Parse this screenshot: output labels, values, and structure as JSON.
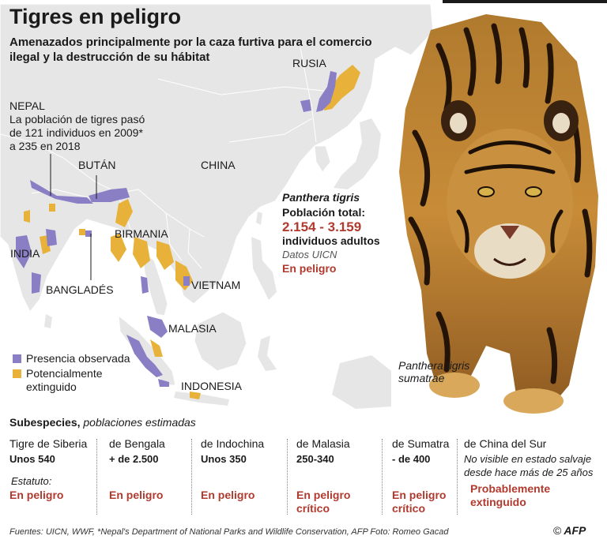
{
  "header": {
    "title": "Tigres en peligro",
    "subtitle": "Amenazados principalmente por la caza furtiva para el comercio ilegal y la destrucción de su hábitat"
  },
  "map": {
    "labels": {
      "russia": "RUSIA",
      "china": "CHINA",
      "bhutan": "BUTÁN",
      "burma": "BIRMANIA",
      "india": "INDIA",
      "bangladesh": "BANGLADÉS",
      "vietnam": "VIETNAM",
      "malaysia": "MALASIA",
      "indonesia": "INDONESIA"
    },
    "nepal_note": {
      "label": "NEPAL",
      "text": "La población de tigres pasó de 121 individuos en 2009* a 235 en 2018"
    },
    "colors": {
      "land": "#e6e6e6",
      "sea": "#ffffff",
      "border": "#ffffff",
      "observed": "#8a7fc4",
      "extinct": "#e8b23a"
    }
  },
  "legend": {
    "observed": "Presencia observada",
    "extinct": "Potencialmente extinguido"
  },
  "species": {
    "name": "Panthera tigris",
    "population_label": "Población total:",
    "population": "2.154 - 3.159",
    "individuals": "individuos adultos",
    "source": "Datos UICN",
    "status": "En peligro"
  },
  "tiger_caption": "Panthera tigris sumatrae",
  "subspecies": {
    "heading_bold": "Subespecies,",
    "heading_italic": "poblaciones estimadas",
    "status_label": "Estatuto:",
    "items": [
      {
        "name": "Tigre de Siberia",
        "count": "Unos 540",
        "status": "En peligro"
      },
      {
        "name": "de Bengala",
        "count": "+ de 2.500",
        "status": "En peligro"
      },
      {
        "name": "de Indochina",
        "count": "Unos 350",
        "status": "En peligro"
      },
      {
        "name": "de Malasia",
        "count": "250-340",
        "status": "En peligro crítico"
      },
      {
        "name": "de Sumatra",
        "count": "- de 400",
        "status": "En peligro crítico"
      },
      {
        "name": "de China del Sur",
        "note": "No visible en estado salvaje desde hace más de 25 años",
        "status": "Probablemente extinguido"
      }
    ]
  },
  "footer": {
    "sources": "Fuentes: UICN, WWF, *Nepal's Department of National Parks and Wildlife Conservation, AFP Foto: Romeo Gacad",
    "copyright": "©",
    "logo": "AFP"
  }
}
